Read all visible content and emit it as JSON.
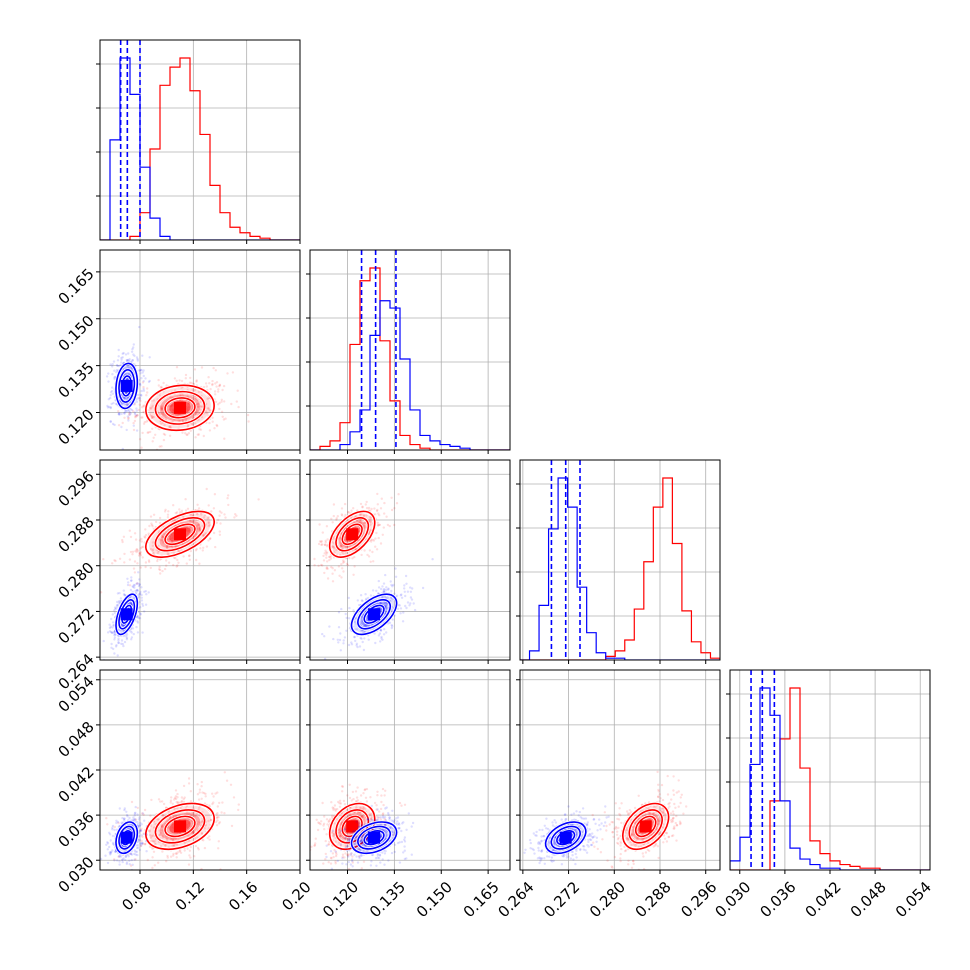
{
  "chart_data": {
    "type": "scatter",
    "title": "",
    "plot_kind": "corner-plot",
    "grid": true,
    "legend": "none",
    "colors": {
      "series_a": "#ff0000",
      "series_b": "#0000ff",
      "quantile_lines": "#0000ff"
    },
    "parameters": [
      {
        "range": [
          0.05,
          0.2
        ],
        "ticks": [
          "0.08",
          "0.12",
          "0.16",
          "0.20"
        ],
        "tick_values": [
          0.08,
          0.12,
          0.16,
          0.2
        ]
      },
      {
        "range": [
          0.108,
          0.172
        ],
        "ticks": [
          "0.120",
          "0.135",
          "0.150",
          "0.165"
        ],
        "tick_values": [
          0.12,
          0.135,
          0.15,
          0.165
        ]
      },
      {
        "range": [
          0.2635,
          0.2985
        ],
        "ticks": [
          "0.264",
          "0.272",
          "0.280",
          "0.288",
          "0.296"
        ],
        "tick_values": [
          0.264,
          0.272,
          0.28,
          0.288,
          0.296
        ]
      },
      {
        "range": [
          0.0287,
          0.0553
        ],
        "ticks": [
          "0.030",
          "0.036",
          "0.042",
          "0.048",
          "0.054"
        ],
        "tick_values": [
          0.03,
          0.036,
          0.042,
          0.048,
          0.054
        ]
      }
    ],
    "series": [
      {
        "color": "#ff0000",
        "mean": [
          0.11,
          0.1215,
          0.2855,
          0.0345
        ],
        "std": [
          0.016,
          0.0045,
          0.0025,
          0.0019
        ],
        "histograms": [
          [
            0,
            0,
            0,
            0.02,
            0.15,
            0.5,
            0.85,
            0.95,
            1.0,
            0.82,
            0.58,
            0.3,
            0.15,
            0.07,
            0.04,
            0.02,
            0.01,
            0,
            0,
            0
          ],
          [
            0,
            0.02,
            0.05,
            0.15,
            0.58,
            0.93,
            1.0,
            0.6,
            0.27,
            0.08,
            0.03,
            0.01,
            0,
            0,
            0,
            0,
            0,
            0,
            0,
            0
          ],
          [
            0,
            0,
            0,
            0,
            0,
            0,
            0,
            0,
            0,
            0.02,
            0.05,
            0.11,
            0.28,
            0.54,
            0.84,
            1.0,
            0.64,
            0.27,
            0.1,
            0.04,
            0.01
          ],
          [
            0,
            0,
            0,
            0,
            0.38,
            0.72,
            1.0,
            0.56,
            0.16,
            0.09,
            0.05,
            0.03,
            0.02,
            0.01,
            0.01,
            0,
            0,
            0,
            0,
            0
          ]
        ]
      },
      {
        "color": "#0000ff",
        "mean": [
          0.07,
          0.1285,
          0.2715,
          0.033
        ],
        "std": [
          0.005,
          0.0045,
          0.0022,
          0.0013
        ],
        "histograms": [
          [
            0,
            0.55,
            1.0,
            0.8,
            0.4,
            0.12,
            0.02,
            0,
            0,
            0,
            0,
            0,
            0,
            0,
            0,
            0,
            0,
            0,
            0,
            0
          ],
          [
            0,
            0,
            0,
            0.03,
            0.1,
            0.22,
            0.63,
            0.82,
            0.78,
            0.5,
            0.22,
            0.08,
            0.05,
            0.03,
            0.02,
            0.01,
            0,
            0,
            0,
            0
          ],
          [
            0,
            0.05,
            0.3,
            0.72,
            1.0,
            0.84,
            0.4,
            0.15,
            0.04,
            0.01,
            0.01,
            0,
            0,
            0,
            0,
            0,
            0,
            0,
            0,
            0,
            0
          ],
          [
            0.05,
            0.18,
            0.58,
            1.0,
            0.85,
            0.38,
            0.12,
            0.06,
            0.03,
            0.01,
            0.01,
            0,
            0,
            0,
            0,
            0,
            0,
            0,
            0,
            0
          ]
        ]
      }
    ],
    "quantiles": [
      [
        0.0655,
        0.0705,
        0.08
      ],
      [
        0.1245,
        0.129,
        0.1355
      ],
      [
        0.269,
        0.2715,
        0.274
      ],
      [
        0.0315,
        0.033,
        0.0346
      ]
    ]
  }
}
